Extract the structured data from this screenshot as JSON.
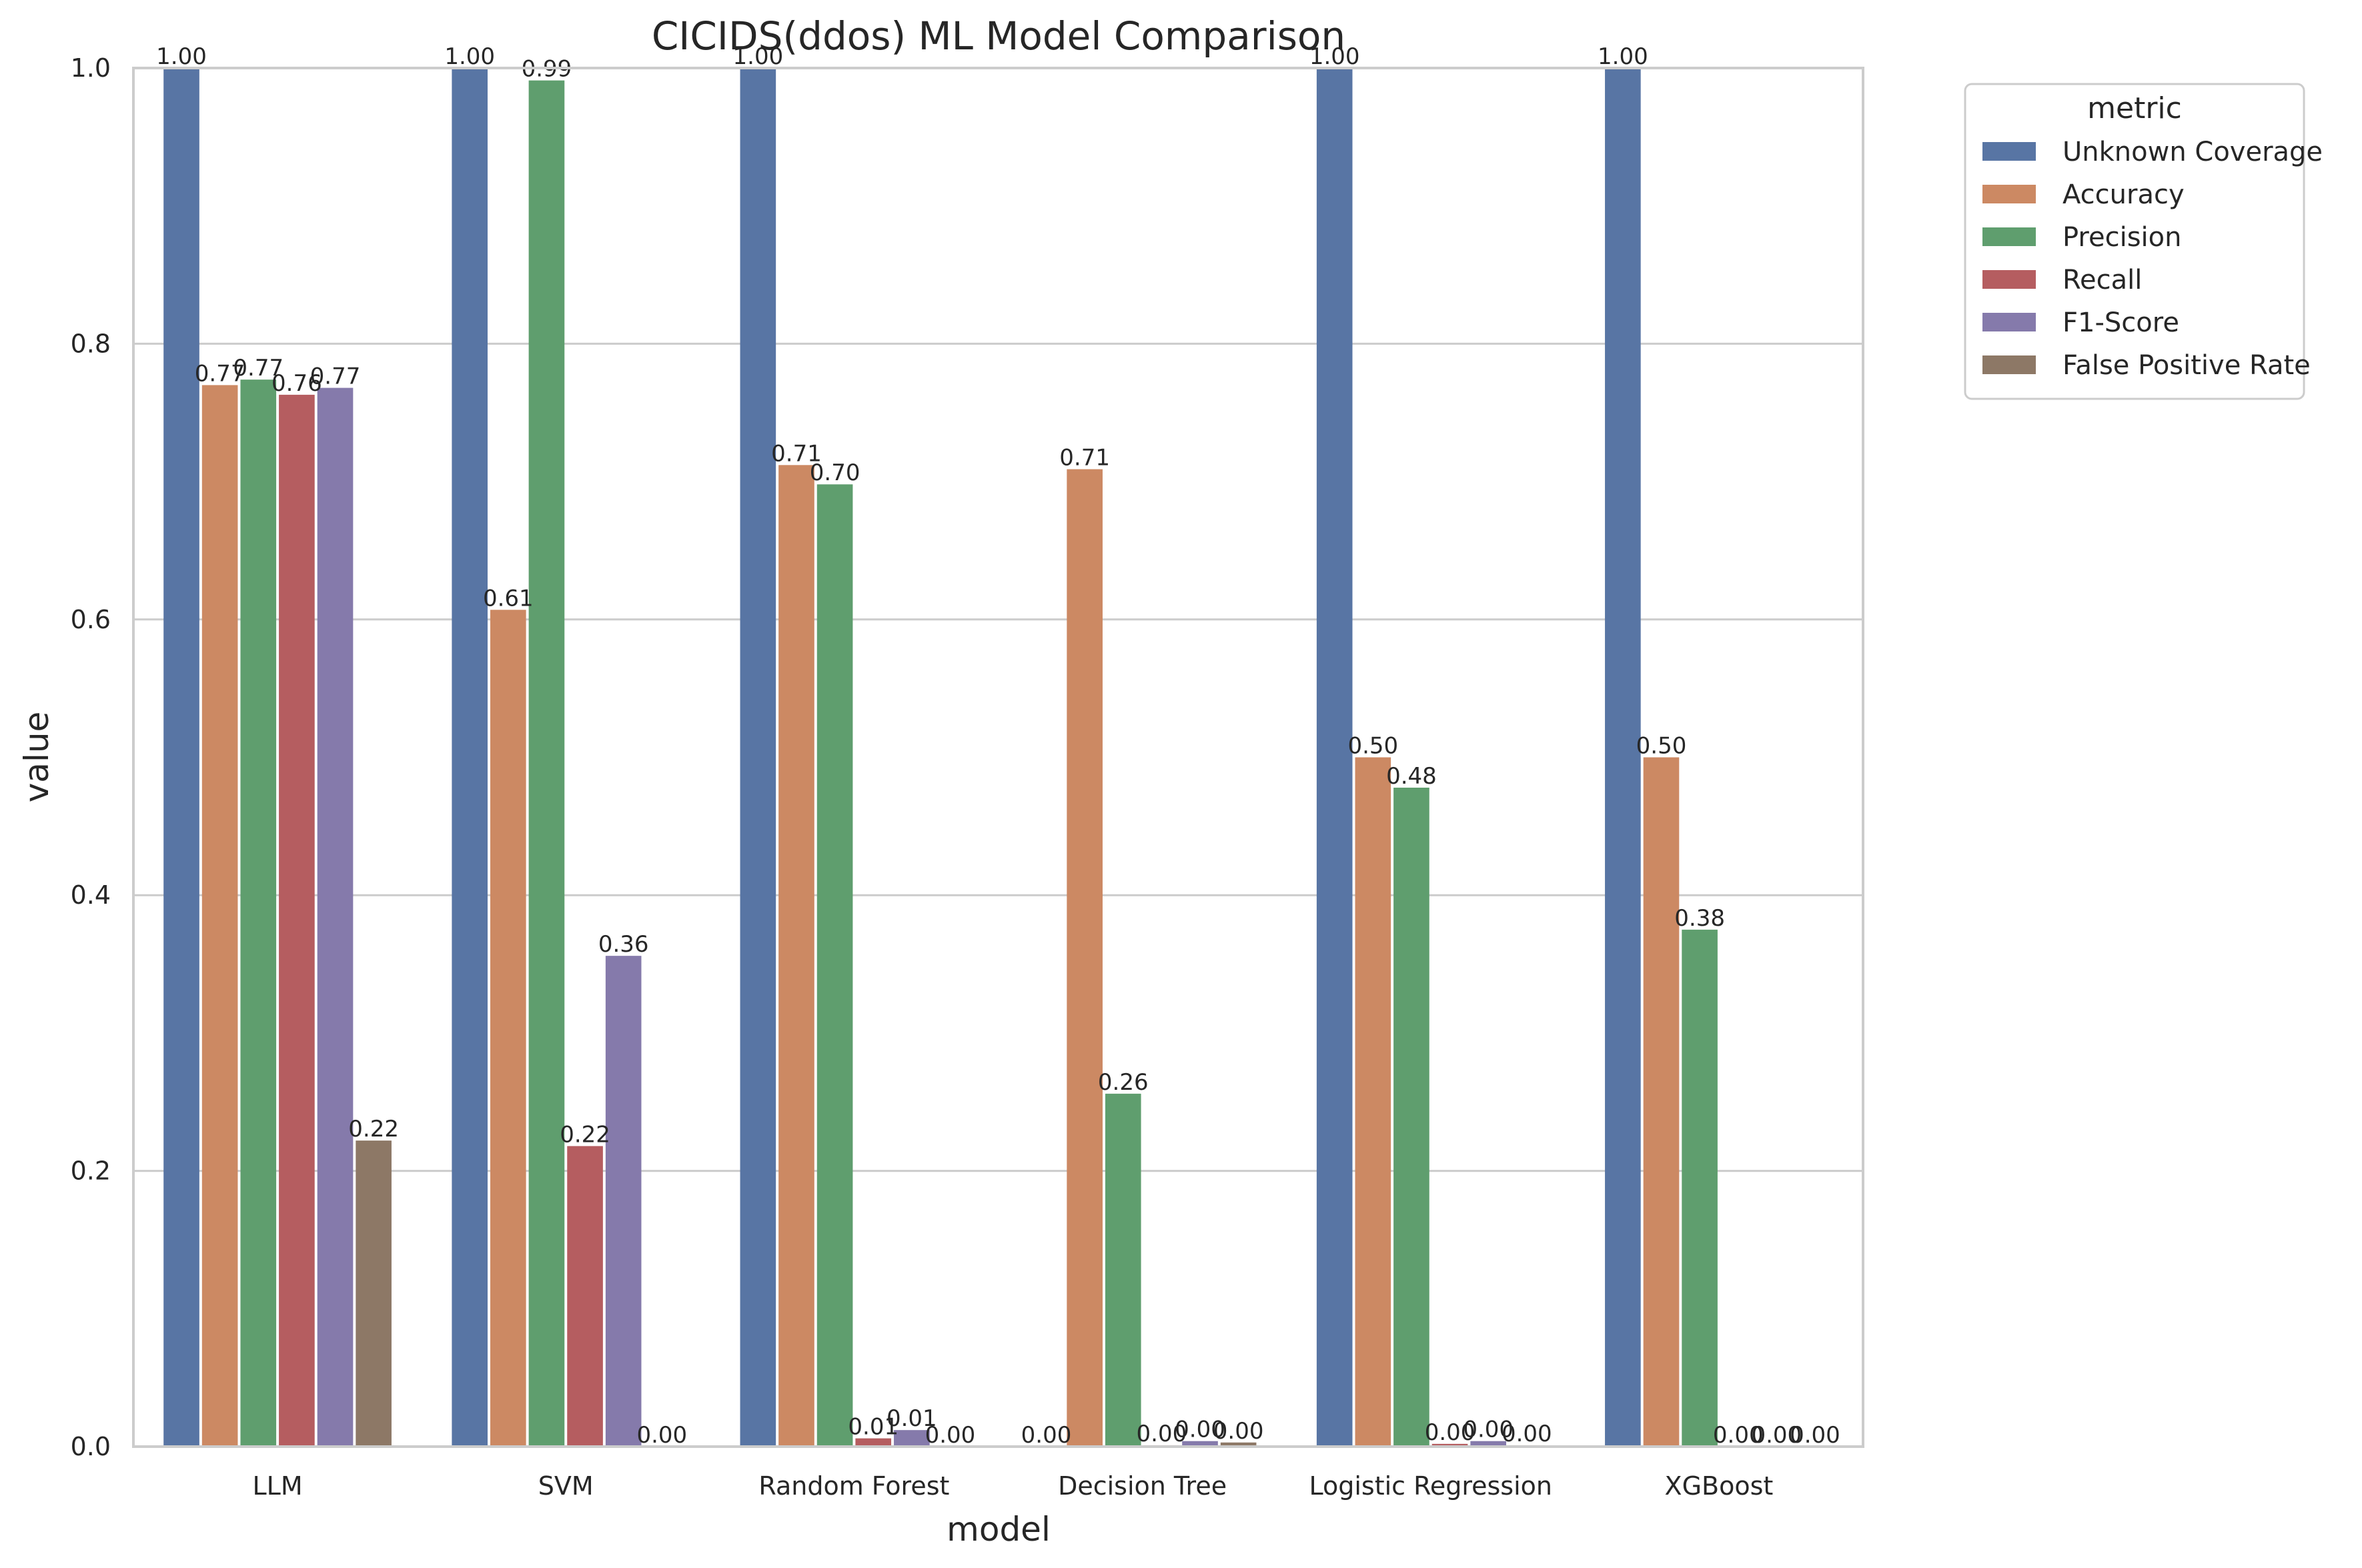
{
  "chart_data": {
    "type": "bar",
    "title": "CICIDS(ddos) ML Model Comparison",
    "xlabel": "model",
    "ylabel": "value",
    "ylim": [
      0,
      1.0
    ],
    "yticks": [
      "0.0",
      "0.2",
      "0.4",
      "0.6",
      "0.8",
      "1.0"
    ],
    "ytick_values": [
      0,
      0.2,
      0.4,
      0.6,
      0.8,
      1.0
    ],
    "grid": "horizontal",
    "categories": [
      "LLM",
      "SVM",
      "Random Forest",
      "Decision Tree",
      "Logistic Regression",
      "XGBoost"
    ],
    "legend": {
      "title": "metric",
      "placement": "outside-top-right"
    },
    "series": [
      {
        "name": "Unknown Coverage",
        "color": "#5875a4",
        "values": [
          1.0,
          1.0,
          1.0,
          0.0,
          1.0,
          1.0
        ],
        "labels": [
          "1.00",
          "1.00",
          "1.00",
          "0.00",
          "1.00",
          "1.00"
        ]
      },
      {
        "name": "Accuracy",
        "color": "#cc8963",
        "values": [
          0.77,
          0.607,
          0.712,
          0.709,
          0.5,
          0.5
        ],
        "labels": [
          "0.77",
          "0.61",
          "0.71",
          "0.71",
          "0.50",
          "0.50"
        ]
      },
      {
        "name": "Precision",
        "color": "#5f9e6e",
        "values": [
          0.774,
          0.991,
          0.698,
          0.256,
          0.478,
          0.375
        ],
        "labels": [
          "0.77",
          "0.99",
          "0.70",
          "0.26",
          "0.48",
          "0.38"
        ]
      },
      {
        "name": "Recall",
        "color": "#b55d60",
        "values": [
          0.763,
          0.218,
          0.006,
          0.001,
          0.002,
          0.0
        ],
        "labels": [
          "0.76",
          "0.22",
          "0.01",
          "0.00",
          "0.00",
          "0.00"
        ]
      },
      {
        "name": "F1-Score",
        "color": "#857aab",
        "values": [
          0.768,
          0.356,
          0.012,
          0.004,
          0.004,
          0.0
        ],
        "labels": [
          "0.77",
          "0.36",
          "0.01",
          "0.00",
          "0.00",
          "0.00"
        ]
      },
      {
        "name": "False Positive Rate",
        "color": "#8d7866",
        "values": [
          0.222,
          0.0,
          0.0,
          0.003,
          0.001,
          0.0
        ],
        "labels": [
          "0.22",
          "0.00",
          "0.00",
          "0.00",
          "0.00",
          "0.00"
        ]
      }
    ]
  }
}
